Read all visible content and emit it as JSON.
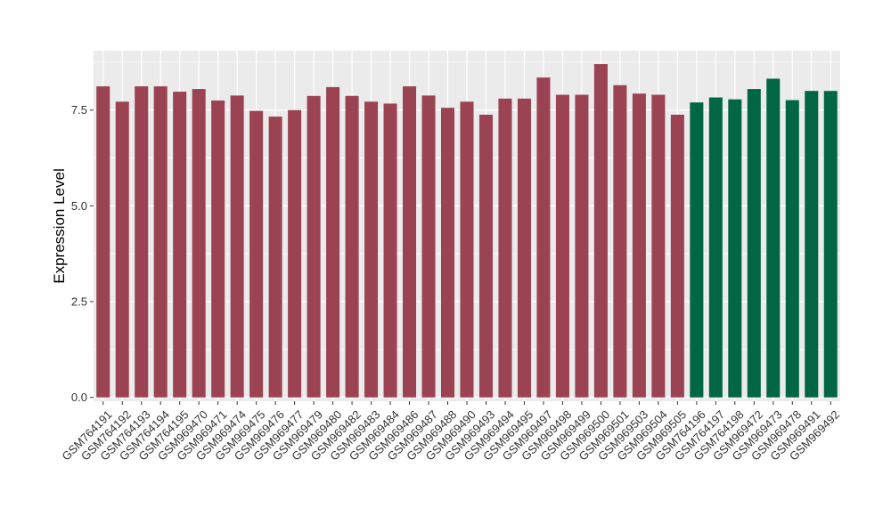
{
  "chart_data": {
    "type": "bar",
    "title": "",
    "xlabel": "",
    "ylabel": "Expression Level",
    "ylim": [
      -0.1,
      9.05
    ],
    "yticks": [
      0.0,
      2.5,
      5.0,
      7.5
    ],
    "ytick_labels": [
      "0.0",
      "2.5",
      "5.0",
      "7.5"
    ],
    "grid": true,
    "legend": "none",
    "colors": {
      "group1": "#9b4352",
      "group2": "#006644",
      "panel_bg": "#ebebeb",
      "grid": "#ffffff"
    },
    "categories": [
      "GSM764191",
      "GSM764192",
      "GSM764193",
      "GSM764194",
      "GSM764195",
      "GSM969470",
      "GSM969471",
      "GSM969474",
      "GSM969475",
      "GSM969476",
      "GSM969477",
      "GSM969479",
      "GSM969480",
      "GSM969482",
      "GSM969483",
      "GSM969484",
      "GSM969486",
      "GSM969487",
      "GSM969488",
      "GSM969490",
      "GSM969493",
      "GSM969494",
      "GSM969495",
      "GSM969497",
      "GSM969498",
      "GSM969499",
      "GSM969500",
      "GSM969501",
      "GSM969503",
      "GSM969504",
      "GSM969505",
      "GSM764196",
      "GSM764197",
      "GSM764198",
      "GSM969472",
      "GSM969473",
      "GSM969478",
      "GSM969491",
      "GSM969492"
    ],
    "values": [
      8.12,
      7.72,
      8.12,
      8.12,
      7.98,
      8.05,
      7.75,
      7.88,
      7.48,
      7.33,
      7.5,
      7.87,
      8.1,
      7.87,
      7.72,
      7.67,
      8.12,
      7.88,
      7.56,
      7.72,
      7.38,
      7.8,
      7.8,
      8.35,
      7.9,
      7.9,
      8.7,
      8.15,
      7.93,
      7.9,
      7.38,
      7.7,
      7.83,
      7.78,
      8.05,
      8.32,
      7.76,
      8.0,
      8.0
    ],
    "groups": [
      1,
      1,
      1,
      1,
      1,
      1,
      1,
      1,
      1,
      1,
      1,
      1,
      1,
      1,
      1,
      1,
      1,
      1,
      1,
      1,
      1,
      1,
      1,
      1,
      1,
      1,
      1,
      1,
      1,
      1,
      1,
      2,
      2,
      2,
      2,
      2,
      2,
      2,
      2
    ]
  }
}
